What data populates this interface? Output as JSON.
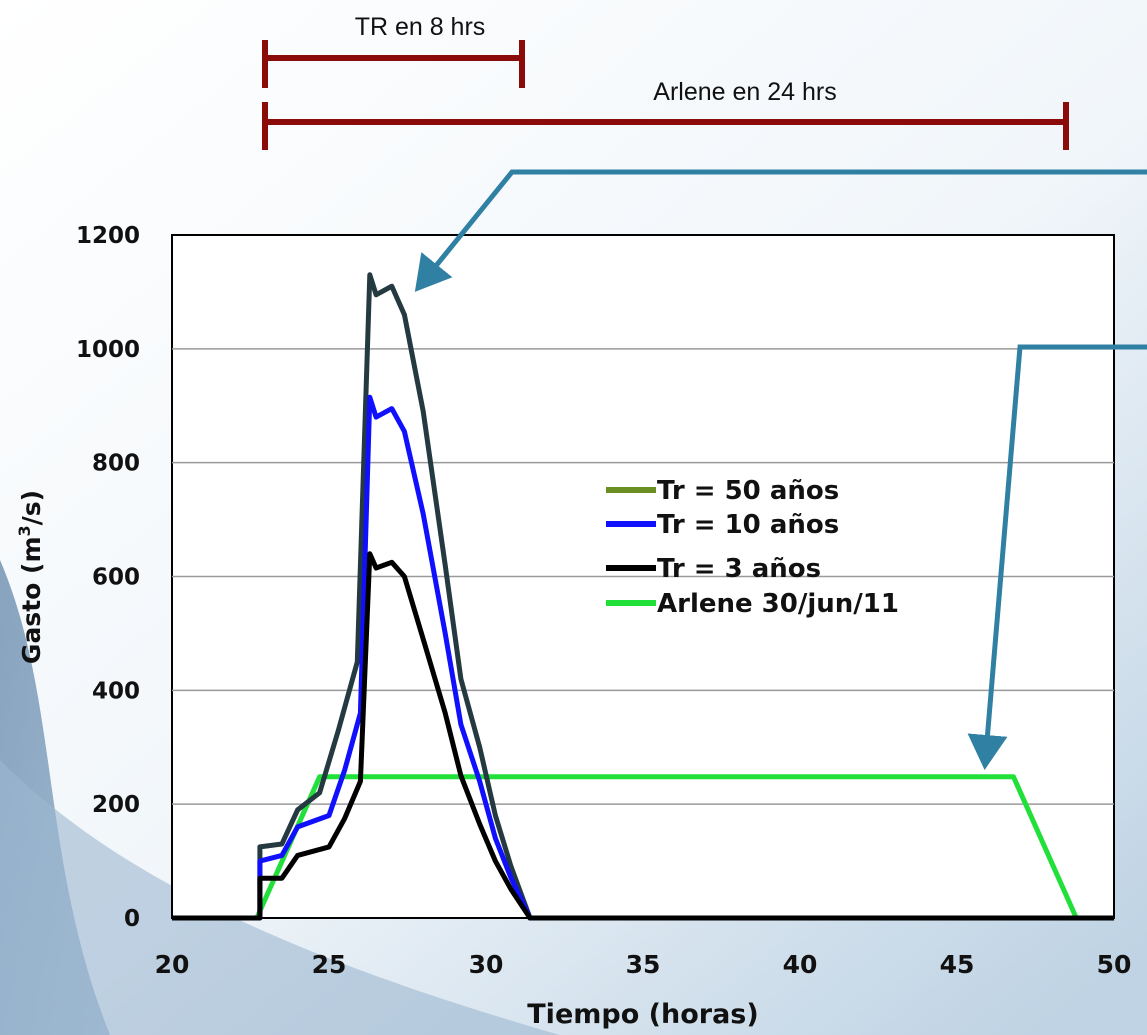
{
  "annotations": {
    "tr_span_label": "TR en 8 hrs",
    "arlene_span_label": "Arlene en 24 hrs"
  },
  "colors": {
    "span_bar": "#8b0b0b",
    "arrow": "#2f80a3",
    "grid": "#9a9a9a",
    "tr50": "#243a40",
    "tr50_legend": "#6b8e23",
    "tr10": "#1010ff",
    "tr3": "#000000",
    "arlene": "#22e03a"
  },
  "chart_data": {
    "type": "line",
    "xlabel": "Tiempo (horas)",
    "ylabel": "Gasto (m3/s)",
    "ylabel_parts": [
      "Gasto (m",
      "3",
      "/s)"
    ],
    "xlim": [
      20,
      50
    ],
    "ylim": [
      0,
      1200
    ],
    "xticks": [
      20,
      25,
      30,
      35,
      40,
      45,
      50
    ],
    "yticks": [
      0,
      200,
      400,
      600,
      800,
      1000,
      1200
    ],
    "grid": "horizontal",
    "legend_position": "center",
    "series": [
      {
        "name": "Tr = 50 años",
        "key": "tr50",
        "points": [
          [
            20,
            0
          ],
          [
            22.8,
            0
          ],
          [
            22.8,
            125
          ],
          [
            23.5,
            130
          ],
          [
            24,
            190
          ],
          [
            24.7,
            220
          ],
          [
            25.3,
            330
          ],
          [
            25.9,
            450
          ],
          [
            26.3,
            1130
          ],
          [
            26.5,
            1095
          ],
          [
            27,
            1110
          ],
          [
            27.4,
            1060
          ],
          [
            28,
            890
          ],
          [
            28.7,
            620
          ],
          [
            29.2,
            420
          ],
          [
            29.8,
            300
          ],
          [
            30.3,
            180
          ],
          [
            30.8,
            90
          ],
          [
            31.4,
            0
          ],
          [
            50,
            0
          ]
        ]
      },
      {
        "name": "Tr = 10 años",
        "key": "tr10",
        "points": [
          [
            20,
            0
          ],
          [
            22.8,
            0
          ],
          [
            22.8,
            100
          ],
          [
            23.5,
            110
          ],
          [
            24,
            160
          ],
          [
            25,
            180
          ],
          [
            25.5,
            260
          ],
          [
            26,
            360
          ],
          [
            26.3,
            915
          ],
          [
            26.5,
            880
          ],
          [
            27,
            895
          ],
          [
            27.4,
            855
          ],
          [
            28,
            710
          ],
          [
            28.7,
            500
          ],
          [
            29.2,
            340
          ],
          [
            29.8,
            240
          ],
          [
            30.3,
            140
          ],
          [
            30.8,
            70
          ],
          [
            31.4,
            0
          ],
          [
            50,
            0
          ]
        ]
      },
      {
        "name": "Tr = 3 años",
        "key": "tr3",
        "points": [
          [
            20,
            0
          ],
          [
            22.8,
            0
          ],
          [
            22.8,
            70
          ],
          [
            23.5,
            70
          ],
          [
            24,
            110
          ],
          [
            25,
            125
          ],
          [
            25.5,
            175
          ],
          [
            26,
            240
          ],
          [
            26.3,
            640
          ],
          [
            26.5,
            615
          ],
          [
            27,
            625
          ],
          [
            27.4,
            600
          ],
          [
            28,
            490
          ],
          [
            28.7,
            360
          ],
          [
            29.2,
            250
          ],
          [
            29.8,
            165
          ],
          [
            30.3,
            100
          ],
          [
            30.8,
            50
          ],
          [
            31.4,
            0
          ],
          [
            50,
            0
          ]
        ]
      },
      {
        "name": "Arlene 30/jun/11",
        "key": "arlene",
        "points": [
          [
            20,
            0
          ],
          [
            22.7,
            0
          ],
          [
            24.7,
            248
          ],
          [
            46.8,
            248
          ],
          [
            48.8,
            0
          ],
          [
            50,
            0
          ]
        ]
      }
    ]
  }
}
